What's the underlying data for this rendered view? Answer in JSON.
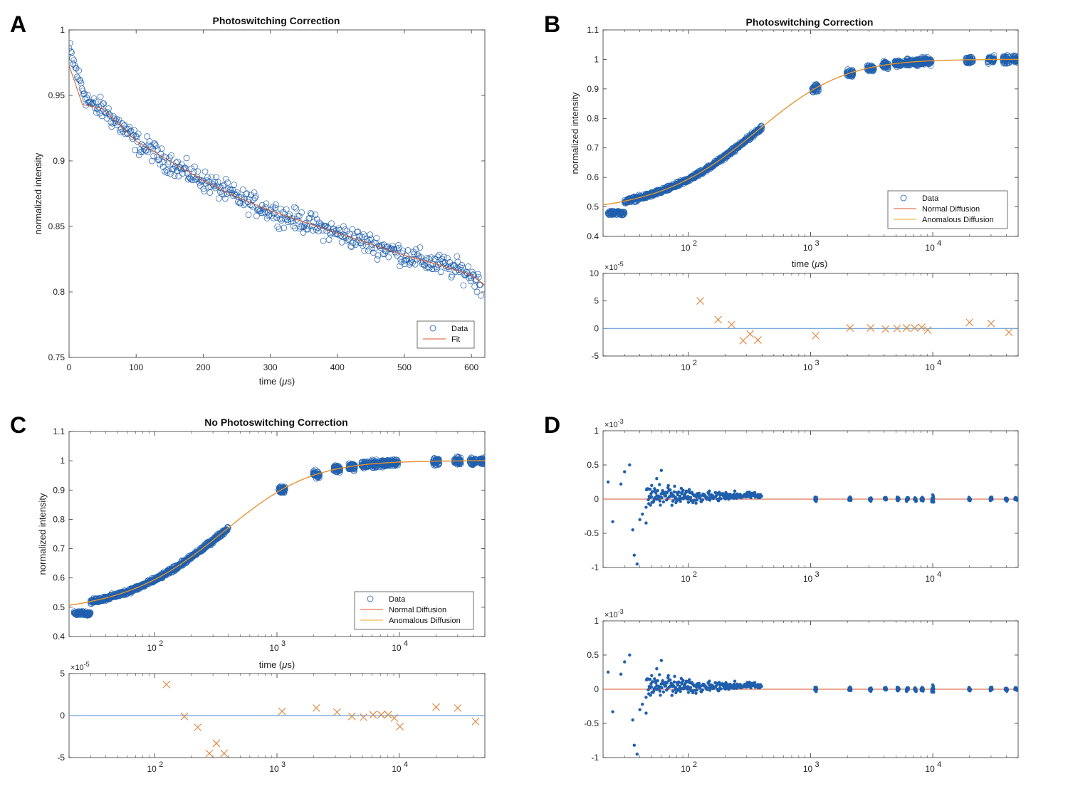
{
  "panel_labels": [
    "A",
    "B",
    "C",
    "D"
  ],
  "colors": {
    "data": "#1f5fad",
    "fit": "#d9542b",
    "normal": "#d9542b",
    "anomalous": "#e8a82a",
    "residual_line": "#6aa2d8",
    "cross": "#e0823a",
    "axis": "#333333"
  },
  "chart_data": [
    {
      "id": "A",
      "type": "scatter",
      "title": "Photoswitching Correction",
      "xlabel": "time (μs)",
      "ylabel": "normalized intensity",
      "xlim": [
        0,
        620
      ],
      "ylim": [
        0.75,
        1.0
      ],
      "xscale": "linear",
      "xticks": [
        0,
        100,
        200,
        300,
        400,
        500,
        600
      ],
      "yticks": [
        0.75,
        0.8,
        0.85,
        0.9,
        0.95,
        1
      ],
      "legend": {
        "position": "bottom-right",
        "entries": [
          "Data",
          "Fit"
        ]
      },
      "series": [
        {
          "name": "Data",
          "kind": "scatter-circle",
          "x": [
            0,
            10,
            20,
            30,
            40,
            50,
            60,
            70,
            80,
            90,
            100,
            110,
            120,
            130,
            140,
            150,
            160,
            170,
            180,
            190,
            200,
            220,
            240,
            260,
            280,
            300,
            320,
            340,
            360,
            380,
            400,
            420,
            440,
            460,
            480,
            500,
            520,
            540,
            560,
            580,
            600,
            615
          ],
          "y": [
            0.985,
            0.97,
            0.955,
            0.945,
            0.94,
            0.94,
            0.935,
            0.93,
            0.925,
            0.92,
            0.915,
            0.91,
            0.91,
            0.905,
            0.9,
            0.9,
            0.895,
            0.893,
            0.89,
            0.888,
            0.885,
            0.88,
            0.875,
            0.87,
            0.866,
            0.862,
            0.858,
            0.855,
            0.852,
            0.848,
            0.845,
            0.842,
            0.838,
            0.835,
            0.832,
            0.828,
            0.825,
            0.822,
            0.82,
            0.817,
            0.813,
            0.805
          ],
          "spread": 0.015
        },
        {
          "name": "Fit",
          "kind": "line",
          "model": "0.972*exp(-x/1650)",
          "x": [
            0,
            50,
            100,
            200,
            300,
            400,
            500,
            600,
            620
          ],
          "y": [
            0.972,
            0.943,
            0.915,
            0.89,
            0.866,
            0.843,
            0.828,
            0.82,
            0.812
          ]
        }
      ]
    },
    {
      "id": "B",
      "type": "scatter",
      "title": "Photoswitching Correction",
      "xlabel": "time (μs)",
      "ylabel": "normalized intensity",
      "xlim": [
        20,
        50000
      ],
      "ylim": [
        0.4,
        1.1
      ],
      "xscale": "log",
      "xticks": [
        100,
        1000,
        10000
      ],
      "xtick_labels": [
        "10",
        "10",
        "10"
      ],
      "xtick_exps": [
        "2",
        "3",
        "4"
      ],
      "yticks": [
        0.4,
        0.5,
        0.6,
        0.7,
        0.8,
        0.9,
        1,
        1.1
      ],
      "legend": {
        "position": "bottom-right",
        "entries": [
          "Data",
          "Normal Diffusion",
          "Anomalous Diffusion"
        ]
      },
      "series": [
        {
          "name": "Data",
          "kind": "scatter-circle",
          "x_from": 22,
          "x_to": 400,
          "dense": true
        },
        {
          "name": "Data",
          "kind": "clusters",
          "x": [
            1100,
            2100,
            3100,
            4100,
            5200,
            6200,
            7200,
            8200,
            9200,
            20000,
            30000,
            40000,
            48000
          ]
        },
        {
          "name": "Normal Diffusion",
          "kind": "line",
          "model": "1-0.52/(1+t/600)^1.6"
        },
        {
          "name": "Anomalous Diffusion",
          "kind": "line",
          "model": "1-0.52/(1+t/600)^1.6"
        }
      ],
      "residual": {
        "ylim": [
          -5,
          10
        ],
        "yticks": [
          -5,
          0,
          5,
          10
        ],
        "exponent": "-5",
        "x": [
          125,
          175,
          225,
          280,
          320,
          370,
          1100,
          2100,
          3100,
          4100,
          5100,
          6100,
          7100,
          8100,
          9100,
          20000,
          30000,
          42000
        ],
        "y": [
          5,
          1.6,
          0.7,
          -2.2,
          -1,
          -2.1,
          -1.3,
          0.1,
          0.1,
          -0.1,
          0,
          0.1,
          0.1,
          0.2,
          -0.3,
          1.1,
          0.9,
          -0.7
        ]
      }
    },
    {
      "id": "C",
      "type": "scatter",
      "title": "No Photoswitching Correction",
      "xlabel": "time (μs)",
      "ylabel": "normalized intensity",
      "xlim": [
        20,
        50000
      ],
      "ylim": [
        0.4,
        1.1
      ],
      "xscale": "log",
      "xticks": [
        100,
        1000,
        10000
      ],
      "xtick_labels": [
        "10",
        "10",
        "10"
      ],
      "xtick_exps": [
        "2",
        "3",
        "4"
      ],
      "yticks": [
        0.4,
        0.5,
        0.6,
        0.7,
        0.8,
        0.9,
        1,
        1.1
      ],
      "legend": {
        "position": "bottom-right",
        "entries": [
          "Data",
          "Normal Diffusion",
          "Anomalous Diffusion"
        ]
      },
      "series": [
        {
          "name": "Data",
          "kind": "scatter-circle",
          "x_from": 22,
          "x_to": 400,
          "dense": true
        },
        {
          "name": "Data",
          "kind": "clusters",
          "x": [
            1100,
            2100,
            3100,
            4100,
            5200,
            6200,
            7200,
            8200,
            9200,
            20000,
            30000,
            40000,
            48000
          ]
        },
        {
          "name": "Normal Diffusion",
          "kind": "line",
          "model": "1-0.52/(1+t/600)^1.6"
        },
        {
          "name": "Anomalous Diffusion",
          "kind": "line",
          "model": "1-0.52/(1+t/600)^1.6"
        }
      ],
      "residual": {
        "ylim": [
          -5,
          5
        ],
        "yticks": [
          -5,
          0,
          5
        ],
        "exponent": "-5",
        "x": [
          125,
          175,
          225,
          280,
          320,
          370,
          1100,
          2100,
          3100,
          4100,
          5100,
          6100,
          7100,
          8100,
          9100,
          10100,
          20000,
          30000,
          42000
        ],
        "y": [
          3.7,
          -0.1,
          -1.4,
          -4.5,
          -3.3,
          -4.5,
          0.5,
          0.9,
          0.4,
          -0.1,
          -0.2,
          0.1,
          0.1,
          0.1,
          -0.3,
          -1.3,
          1,
          0.9,
          -0.7
        ]
      }
    },
    {
      "id": "D",
      "type": "scatter",
      "subplots": [
        {
          "ylim": [
            -1,
            1
          ],
          "yticks": [
            -1,
            -0.5,
            0,
            0.5,
            1
          ],
          "ytick_labels": [
            "-1",
            "-0.5",
            "0",
            "0.5",
            "1"
          ],
          "exponent": "-3"
        },
        {
          "ylim": [
            -1,
            1
          ],
          "yticks": [
            -1,
            -0.5,
            0,
            0.5,
            1
          ],
          "ytick_labels": [
            "-1",
            "-0.5",
            "0",
            "0.5",
            "1"
          ],
          "exponent": "-3"
        }
      ],
      "xlim": [
        20,
        50000
      ],
      "xscale": "log",
      "xticks": [
        100,
        1000,
        10000
      ],
      "xtick_labels": [
        "10",
        "10",
        "10"
      ],
      "xtick_exps": [
        "2",
        "3",
        "4"
      ],
      "series": [
        {
          "kind": "residual-dots",
          "x_from": 20,
          "x_to": 400,
          "outliers_x": [
            22,
            24,
            28,
            30,
            33,
            35,
            36,
            38,
            40,
            42,
            45,
            50,
            55,
            60
          ],
          "outliers_y": [
            0.25,
            -0.33,
            0.22,
            0.4,
            0.5,
            -0.45,
            -0.82,
            -0.95,
            -0.3,
            -0.22,
            -0.35,
            0.2,
            0.3,
            0.42
          ]
        },
        {
          "kind": "clusters",
          "x": [
            1100,
            2100,
            3100,
            4100,
            5200,
            6200,
            7200,
            8200,
            10000,
            20000,
            30000,
            40000,
            48000
          ]
        }
      ]
    }
  ],
  "legend_labels": {
    "data": "Data",
    "fit": "Fit",
    "normal": "Normal Diffusion",
    "anomalous": "Anomalous Diffusion"
  },
  "text": {
    "xlabel_main": "time (",
    "xlabel_mu": "μ",
    "xlabel_s": "s)",
    "ylabel": "normalized intensity",
    "times10": "×10",
    "titleA": "Photoswitching Correction",
    "titleB": "Photoswitching Correction",
    "titleC": "No Photoswitching Correction"
  }
}
